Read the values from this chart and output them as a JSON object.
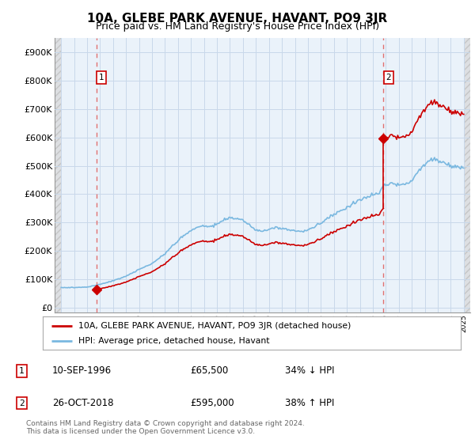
{
  "title": "10A, GLEBE PARK AVENUE, HAVANT, PO9 3JR",
  "subtitle": "Price paid vs. HM Land Registry's House Price Index (HPI)",
  "ylabel_values": [
    "£0",
    "£100K",
    "£200K",
    "£300K",
    "£400K",
    "£500K",
    "£600K",
    "£700K",
    "£800K",
    "£900K"
  ],
  "yticks": [
    0,
    100000,
    200000,
    300000,
    400000,
    500000,
    600000,
    700000,
    800000,
    900000
  ],
  "xlim": [
    1993.5,
    2025.5
  ],
  "ylim": [
    -15000,
    950000
  ],
  "sale1_date": 1996.71,
  "sale1_price": 65500,
  "sale2_date": 2018.82,
  "sale2_price": 595000,
  "legend_line1": "10A, GLEBE PARK AVENUE, HAVANT, PO9 3JR (detached house)",
  "legend_line2": "HPI: Average price, detached house, Havant",
  "footer": "Contains HM Land Registry data © Crown copyright and database right 2024.\nThis data is licensed under the Open Government Licence v3.0.",
  "hpi_color": "#7ab8e0",
  "price_color": "#cc0000",
  "grid_color": "#c8d8ea",
  "dashed_line_color": "#e07070",
  "background_plot": "#eaf2fa",
  "hatch_color": "#d0d0d0",
  "title_fontsize": 11,
  "subtitle_fontsize": 9
}
